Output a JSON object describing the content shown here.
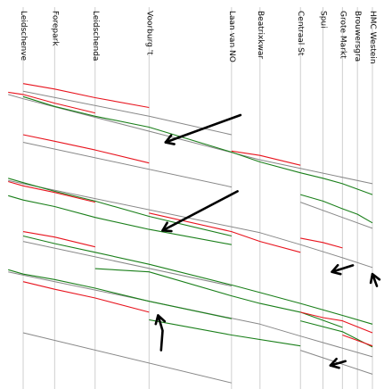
{
  "chart_data": {
    "type": "line",
    "title": "",
    "xlabel": "",
    "ylabel": "",
    "grid": true,
    "colors": {
      "planned": "#888888",
      "late": "#e8141e",
      "early": "#1a7f1a",
      "annotation": "#000000"
    },
    "stops": [
      {
        "label": "Leidschenveen",
        "x": 0
      },
      {
        "label": "Forepark",
        "x": 2.1
      },
      {
        "label": "Leidschendam",
        "x": 4.8
      },
      {
        "label": "Voorburg 't Loo",
        "x": 8.4
      },
      {
        "label": "Laan van NOI",
        "x": 13.9
      },
      {
        "label": "Beatrixkwartier",
        "x": 15.8
      },
      {
        "label": "Centraal Station",
        "x": 18.5
      },
      {
        "label": "Spui",
        "x": 20.0
      },
      {
        "label": "Grote Markt",
        "x": 21.3
      },
      {
        "label": "Brouwersgracht",
        "x": 22.3
      },
      {
        "label": "HMC Westeinde",
        "x": 23.3
      }
    ],
    "series": [
      {
        "kind": "planned",
        "points": [
          [
            0,
            1.0
          ],
          [
            8.4,
            3.3
          ]
        ]
      },
      {
        "kind": "late",
        "points": [
          [
            0,
            0.3
          ],
          [
            2.1,
            0.8
          ],
          [
            4.8,
            1.6
          ],
          [
            8.4,
            2.5
          ]
        ]
      },
      {
        "kind": "planned",
        "points": [
          [
            8.4,
            3.3
          ],
          [
            13.9,
            5.0
          ]
        ]
      },
      {
        "kind": "planned",
        "points": [
          [
            -1,
            1.3
          ],
          [
            0,
            1.7
          ],
          [
            15.8,
            7.3
          ],
          [
            18.5,
            8.1
          ],
          [
            23.3,
            9.5
          ]
        ]
      },
      {
        "kind": "late",
        "points": [
          [
            -1,
            1.1
          ],
          [
            0,
            1.3
          ],
          [
            2.1,
            2.1
          ],
          [
            4.8,
            3.0
          ]
        ]
      },
      {
        "kind": "early",
        "points": [
          [
            0,
            1.5
          ],
          [
            2.1,
            2.4
          ],
          [
            4.8,
            3.3
          ],
          [
            8.4,
            4.3
          ],
          [
            13.9,
            6.6
          ]
        ]
      },
      {
        "kind": "early",
        "points": [
          [
            13.9,
            6.6
          ],
          [
            15.8,
            7.5
          ],
          [
            18.5,
            8.5
          ],
          [
            20.0,
            9.0
          ],
          [
            21.3,
            9.5
          ],
          [
            22.3,
            10.0
          ],
          [
            23.3,
            10.5
          ]
        ]
      },
      {
        "kind": "late",
        "points": [
          [
            13.9,
            6.5
          ],
          [
            15.8,
            6.9
          ],
          [
            18.5,
            7.8
          ]
        ]
      },
      {
        "kind": "planned",
        "points": [
          [
            0,
            5.7
          ],
          [
            13.9,
            9.8
          ]
        ]
      },
      {
        "kind": "late",
        "points": [
          [
            0,
            5.0
          ],
          [
            2.1,
            5.6
          ],
          [
            4.8,
            6.4
          ],
          [
            8.4,
            7.6
          ]
        ]
      },
      {
        "kind": "planned",
        "points": [
          [
            -1,
            9.2
          ],
          [
            0,
            9.5
          ],
          [
            15.8,
            14.0
          ],
          [
            18.5,
            15.1
          ],
          [
            21.3,
            16.3
          ],
          [
            23.3,
            17.2
          ]
        ]
      },
      {
        "kind": "late",
        "points": [
          [
            -1,
            9.3
          ],
          [
            0,
            9.7
          ],
          [
            2.1,
            10.3
          ],
          [
            4.8,
            11.2
          ]
        ]
      },
      {
        "kind": "early",
        "points": [
          [
            -1,
            9.0
          ],
          [
            0,
            9.4
          ],
          [
            2.1,
            10.2
          ],
          [
            4.8,
            11.1
          ],
          [
            8.4,
            12.5
          ],
          [
            13.9,
            14.3
          ]
        ]
      },
      {
        "kind": "early",
        "points": [
          [
            -1,
            10.6
          ],
          [
            0,
            11.0
          ],
          [
            2.1,
            11.6
          ],
          [
            4.8,
            12.6
          ],
          [
            8.4,
            13.7
          ],
          [
            13.9,
            15.1
          ]
        ]
      },
      {
        "kind": "late",
        "points": [
          [
            8.4,
            12.2
          ],
          [
            13.9,
            13.9
          ],
          [
            15.8,
            14.8
          ],
          [
            18.5,
            15.8
          ]
        ]
      },
      {
        "kind": "early",
        "points": [
          [
            18.5,
            10.5
          ],
          [
            20.0,
            11.1
          ],
          [
            21.3,
            11.8
          ],
          [
            22.3,
            12.3
          ],
          [
            23.3,
            13.1
          ]
        ]
      },
      {
        "kind": "planned",
        "points": [
          [
            18.5,
            11.2
          ],
          [
            23.3,
            13.6
          ]
        ]
      },
      {
        "kind": "late",
        "points": [
          [
            18.5,
            14.5
          ],
          [
            20.0,
            14.9
          ],
          [
            21.3,
            15.4
          ]
        ]
      },
      {
        "kind": "planned",
        "points": [
          [
            0,
            14.8
          ],
          [
            13.9,
            18.9
          ]
        ]
      },
      {
        "kind": "early",
        "points": [
          [
            0,
            14.3
          ],
          [
            2.1,
            15.0
          ],
          [
            4.8,
            15.8
          ],
          [
            8.4,
            16.9
          ],
          [
            13.9,
            18.8
          ],
          [
            15.8,
            19.5
          ],
          [
            18.5,
            20.5
          ],
          [
            21.3,
            21.6
          ],
          [
            23.3,
            22.4
          ]
        ]
      },
      {
        "kind": "late",
        "points": [
          [
            0,
            13.9
          ],
          [
            2.1,
            14.4
          ],
          [
            4.8,
            15.3
          ]
        ]
      },
      {
        "kind": "planned",
        "points": [
          [
            -1,
            17.6
          ],
          [
            0,
            17.9
          ],
          [
            15.8,
            22.4
          ],
          [
            18.5,
            23.5
          ],
          [
            23.3,
            25.4
          ]
        ]
      },
      {
        "kind": "early",
        "points": [
          [
            -1,
            17.4
          ],
          [
            0,
            17.8
          ],
          [
            2.1,
            18.3
          ],
          [
            4.8,
            19.1
          ],
          [
            8.4,
            20.3
          ],
          [
            13.9,
            21.9
          ]
        ]
      },
      {
        "kind": "early",
        "points": [
          [
            4.8,
            17.3
          ],
          [
            8.4,
            17.6
          ],
          [
            13.9,
            19.8
          ],
          [
            15.8,
            20.5
          ],
          [
            18.5,
            21.3
          ],
          [
            21.3,
            22.7
          ]
        ]
      },
      {
        "kind": "late",
        "points": [
          [
            0,
            18.5
          ],
          [
            2.1,
            19.2
          ],
          [
            4.8,
            20.0
          ],
          [
            8.4,
            21.3
          ]
        ]
      },
      {
        "kind": "early",
        "points": [
          [
            8.4,
            22.0
          ],
          [
            13.9,
            23.4
          ],
          [
            18.5,
            24.4
          ]
        ]
      },
      {
        "kind": "late",
        "points": [
          [
            18.5,
            21.3
          ],
          [
            20.0,
            21.8
          ],
          [
            21.3,
            22.1
          ],
          [
            23.3,
            23.2
          ]
        ]
      },
      {
        "kind": "early",
        "points": [
          [
            18.5,
            22.1
          ],
          [
            21.3,
            23.1
          ],
          [
            23.3,
            24.5
          ]
        ]
      },
      {
        "kind": "late",
        "points": [
          [
            21.3,
            23.4
          ],
          [
            22.3,
            23.9
          ],
          [
            23.3,
            24.4
          ]
        ]
      },
      {
        "kind": "planned",
        "points": [
          [
            0,
            23.2
          ],
          [
            13.9,
            27.8
          ]
        ]
      },
      {
        "kind": "planned",
        "points": [
          [
            18.5,
            24.8
          ],
          [
            23.3,
            27.0
          ]
        ]
      }
    ],
    "annotations": [
      {
        "shape": "arrow",
        "points": [
          [
            14.5,
            3.2
          ],
          [
            9.5,
            5.7
          ]
        ]
      },
      {
        "shape": "arrow",
        "points": [
          [
            14.3,
            10.2
          ],
          [
            9.3,
            13.8
          ]
        ]
      },
      {
        "shape": "arrow",
        "points": [
          [
            22.0,
            17.0
          ],
          [
            20.6,
            17.6
          ]
        ]
      },
      {
        "shape": "arrow",
        "points": [
          [
            23.6,
            18.9
          ],
          [
            23.3,
            17.8
          ]
        ]
      },
      {
        "shape": "arrow",
        "points": [
          [
            9.2,
            24.8
          ],
          [
            9.3,
            23.0
          ],
          [
            9.0,
            21.6
          ]
        ]
      },
      {
        "shape": "arrow",
        "points": [
          [
            21.5,
            25.8
          ],
          [
            20.5,
            26.2
          ]
        ]
      }
    ]
  }
}
